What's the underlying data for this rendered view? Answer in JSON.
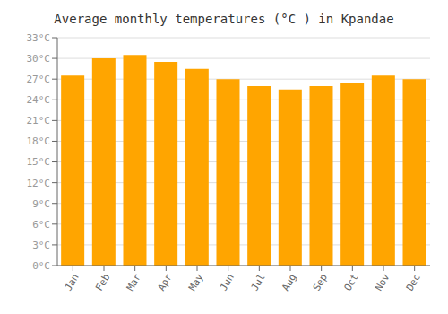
{
  "chart_data": {
    "type": "bar",
    "title": "Average monthly temperatures (°C ) in Kpandae",
    "categories": [
      "Jan",
      "Feb",
      "Mar",
      "Apr",
      "May",
      "Jun",
      "Jul",
      "Aug",
      "Sep",
      "Oct",
      "Nov",
      "Dec"
    ],
    "values": [
      27.5,
      30.0,
      30.5,
      29.5,
      28.5,
      27.0,
      26.0,
      25.5,
      26.0,
      26.5,
      27.5,
      27.0
    ],
    "color": "#FFA500",
    "ylim": [
      0,
      33
    ],
    "yticks": [
      {
        "value": 0,
        "label": "0°C"
      },
      {
        "value": 3,
        "label": "3°C"
      },
      {
        "value": 6,
        "label": "6°C"
      },
      {
        "value": 9,
        "label": "9°C"
      },
      {
        "value": 12,
        "label": "12°C"
      },
      {
        "value": 15,
        "label": "15°C"
      },
      {
        "value": 18,
        "label": "18°C"
      },
      {
        "value": 21,
        "label": "21°C"
      },
      {
        "value": 24,
        "label": "24°C"
      },
      {
        "value": 27,
        "label": "27°C"
      },
      {
        "value": 30,
        "label": "30°C"
      },
      {
        "value": 33,
        "label": "33°C"
      }
    ],
    "grid": true
  }
}
